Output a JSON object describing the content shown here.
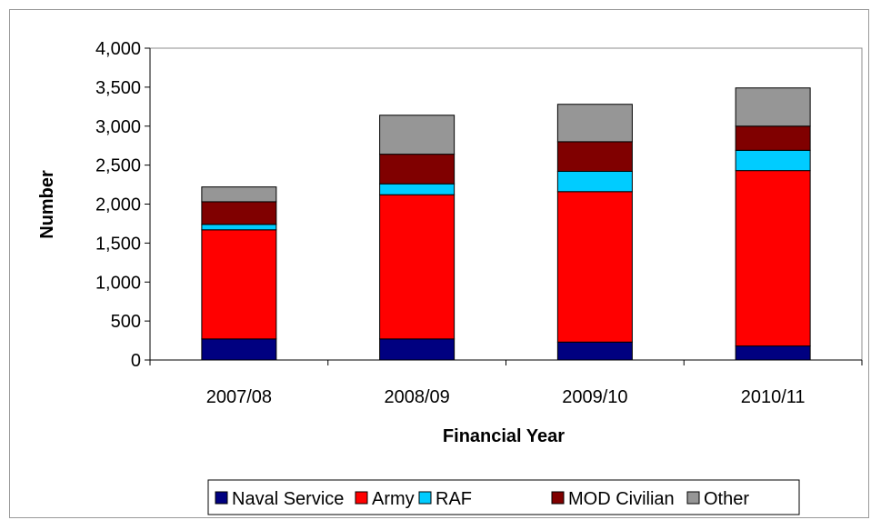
{
  "chart_data": {
    "type": "bar",
    "stacked": true,
    "categories": [
      "2007/08",
      "2008/09",
      "2009/10",
      "2010/11"
    ],
    "series": [
      {
        "name": "Naval Service",
        "color": "#000080",
        "values": [
          270,
          270,
          230,
          180
        ]
      },
      {
        "name": "Army",
        "color": "#ff0000",
        "values": [
          1400,
          1850,
          1930,
          2250
        ]
      },
      {
        "name": "RAF",
        "color": "#00ccff",
        "values": [
          70,
          140,
          260,
          260
        ]
      },
      {
        "name": "MOD Civilian",
        "color": "#800000",
        "values": [
          290,
          380,
          380,
          310
        ]
      },
      {
        "name": "Other",
        "color": "#969696",
        "values": [
          190,
          500,
          480,
          490
        ]
      }
    ],
    "xlabel": "Financial Year",
    "ylabel": "Number",
    "ylim": [
      0,
      4000
    ],
    "yticks": [
      0,
      500,
      1000,
      1500,
      2000,
      2500,
      3000,
      3500,
      4000
    ],
    "ytick_labels": [
      "0",
      "500",
      "1,000",
      "1,500",
      "2,000",
      "2,500",
      "3,000",
      "3,500",
      "4,000"
    ],
    "legend_position": "bottom",
    "grid": false
  }
}
